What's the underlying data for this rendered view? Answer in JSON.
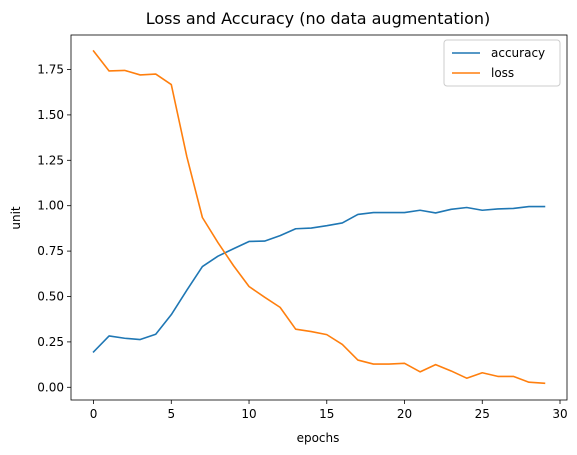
{
  "chart_data": {
    "type": "line",
    "title": "Loss and Accuracy (no data augmentation)",
    "xlabel": "epochs",
    "ylabel": "unit",
    "xlim": [
      -1.45,
      30.45
    ],
    "ylim": [
      -0.07,
      1.94
    ],
    "xticks": [
      0,
      5,
      10,
      15,
      20,
      25,
      30
    ],
    "xtick_labels": [
      "0",
      "5",
      "10",
      "15",
      "20",
      "25",
      "30"
    ],
    "yticks": [
      0.0,
      0.25,
      0.5,
      0.75,
      1.0,
      1.25,
      1.5,
      1.75
    ],
    "ytick_labels": [
      "0.00",
      "0.25",
      "0.50",
      "0.75",
      "1.00",
      "1.25",
      "1.50",
      "1.75"
    ],
    "grid": false,
    "legend": "top-right",
    "x": [
      0,
      1,
      2,
      3,
      4,
      5,
      6,
      7,
      8,
      9,
      10,
      11,
      12,
      13,
      14,
      15,
      16,
      17,
      18,
      19,
      20,
      21,
      22,
      23,
      24,
      25,
      26,
      27,
      28,
      29
    ],
    "series": [
      {
        "name": "accuracy",
        "color": "#1f77b4",
        "values": [
          0.195,
          0.283,
          0.27,
          0.263,
          0.292,
          0.4,
          0.535,
          0.665,
          0.722,
          0.763,
          0.803,
          0.805,
          0.835,
          0.873,
          0.877,
          0.89,
          0.905,
          0.952,
          0.962,
          0.962,
          0.962,
          0.975,
          0.96,
          0.98,
          0.99,
          0.975,
          0.982,
          0.985,
          0.995,
          0.995
        ]
      },
      {
        "name": "loss",
        "color": "#ff7f0e",
        "values": [
          1.852,
          1.742,
          1.745,
          1.72,
          1.725,
          1.667,
          1.27,
          0.935,
          0.797,
          0.67,
          0.555,
          0.496,
          0.44,
          0.32,
          0.307,
          0.29,
          0.236,
          0.15,
          0.128,
          0.128,
          0.132,
          0.085,
          0.125,
          0.09,
          0.05,
          0.08,
          0.06,
          0.06,
          0.028,
          0.022
        ]
      }
    ]
  }
}
